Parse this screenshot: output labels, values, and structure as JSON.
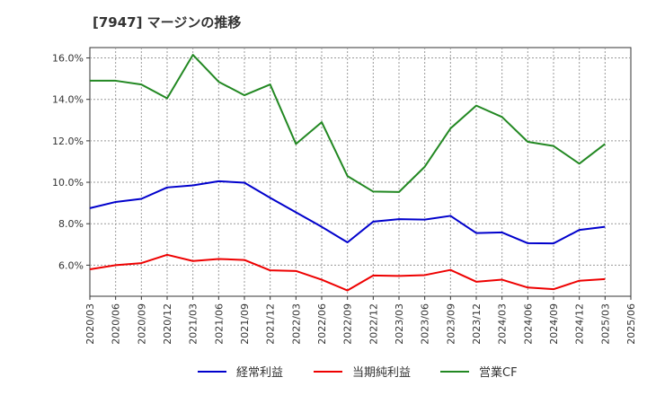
{
  "chart_data": {
    "type": "line",
    "title": "[7947]  マージンの推移",
    "x": [
      "2020/03",
      "2020/06",
      "2020/09",
      "2020/12",
      "2021/03",
      "2021/06",
      "2021/09",
      "2021/12",
      "2022/03",
      "2022/06",
      "2022/09",
      "2022/12",
      "2023/03",
      "2023/06",
      "2023/09",
      "2023/12",
      "2024/03",
      "2024/06",
      "2024/09",
      "2024/12",
      "2025/03",
      "2025/06"
    ],
    "ylim": [
      4.5,
      16.5
    ],
    "yticks": [
      6.0,
      8.0,
      10.0,
      12.0,
      14.0,
      16.0
    ],
    "ytick_labels": [
      "6.0%",
      "8.0%",
      "10.0%",
      "12.0%",
      "14.0%",
      "16.0%"
    ],
    "grid": true,
    "legend_position": "bottom",
    "series": [
      {
        "name": "経常利益",
        "color": "#0000cc",
        "values": [
          8.75,
          9.05,
          9.2,
          9.75,
          9.85,
          10.05,
          9.98,
          9.25,
          8.55,
          7.85,
          7.1,
          8.1,
          8.22,
          8.2,
          8.38,
          7.55,
          7.58,
          7.06,
          7.05,
          7.7,
          7.85,
          null
        ]
      },
      {
        "name": "当期純利益",
        "color": "#ee0000",
        "values": [
          5.8,
          6.0,
          6.1,
          6.5,
          6.2,
          6.3,
          6.25,
          5.75,
          5.72,
          5.3,
          4.78,
          5.5,
          5.48,
          5.52,
          5.77,
          5.2,
          5.3,
          4.92,
          4.84,
          5.25,
          5.33,
          null
        ]
      },
      {
        "name": "営業CF",
        "color": "#228822",
        "values": [
          14.9,
          14.9,
          14.72,
          14.05,
          16.15,
          14.85,
          14.2,
          14.72,
          11.85,
          12.9,
          10.3,
          9.55,
          9.53,
          10.75,
          12.6,
          13.7,
          13.15,
          11.95,
          11.75,
          10.9,
          11.85,
          null
        ]
      }
    ]
  }
}
